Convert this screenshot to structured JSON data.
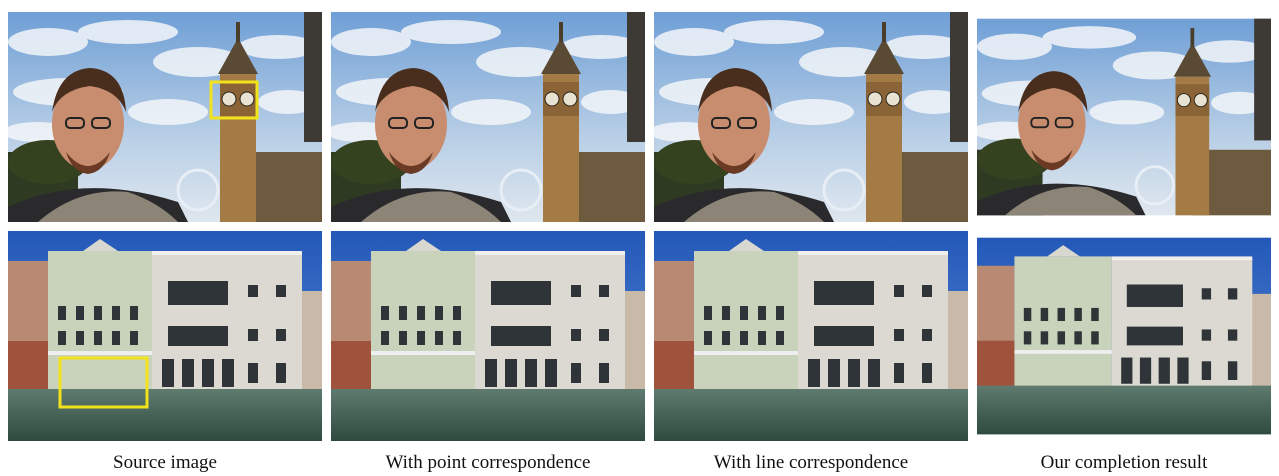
{
  "figure": {
    "captions": [
      "Source image",
      "With point correspondence",
      "With line correspondence",
      "Our completion result"
    ]
  }
}
